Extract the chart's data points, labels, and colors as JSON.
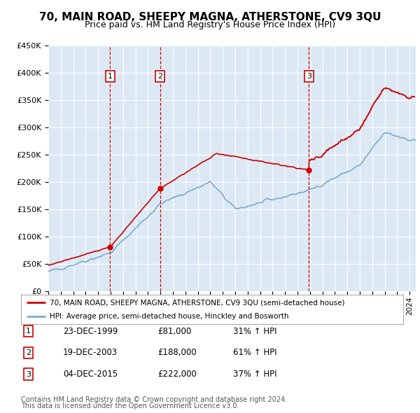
{
  "title": "70, MAIN ROAD, SHEEPY MAGNA, ATHERSTONE, CV9 3QU",
  "subtitle": "Price paid vs. HM Land Registry's House Price Index (HPI)",
  "background_color": "#ffffff",
  "plot_bg_color": "#dce9f5",
  "grid_color": "#ffffff",
  "red_line_color": "#cc0000",
  "blue_line_color": "#7faacc",
  "transaction_line_color": "#cc0000",
  "ylim": [
    0,
    450000
  ],
  "yticks": [
    0,
    50000,
    100000,
    150000,
    200000,
    250000,
    300000,
    350000,
    400000,
    450000
  ],
  "ytick_labels": [
    "£0",
    "£50K",
    "£100K",
    "£150K",
    "£200K",
    "£250K",
    "£300K",
    "£350K",
    "£400K",
    "£450K"
  ],
  "transactions": [
    {
      "label": "1",
      "date": "23-DEC-1999",
      "price": 81000,
      "x_year": 1999.97,
      "pct": "31%",
      "dir": "↑"
    },
    {
      "label": "2",
      "date": "19-DEC-2003",
      "price": 188000,
      "x_year": 2003.97,
      "pct": "61%",
      "dir": "↑"
    },
    {
      "label": "3",
      "date": "04-DEC-2015",
      "price": 222000,
      "x_year": 2015.92,
      "pct": "37%",
      "dir": "↑"
    }
  ],
  "legend_line1": "70, MAIN ROAD, SHEEPY MAGNA, ATHERSTONE, CV9 3QU (semi-detached house)",
  "legend_line2": "HPI: Average price, semi-detached house, Hinckley and Bosworth",
  "footer1": "Contains HM Land Registry data © Crown copyright and database right 2024.",
  "footer2": "This data is licensed under the Open Government Licence v3.0.",
  "xmin": 1995.0,
  "xmax": 2024.5
}
